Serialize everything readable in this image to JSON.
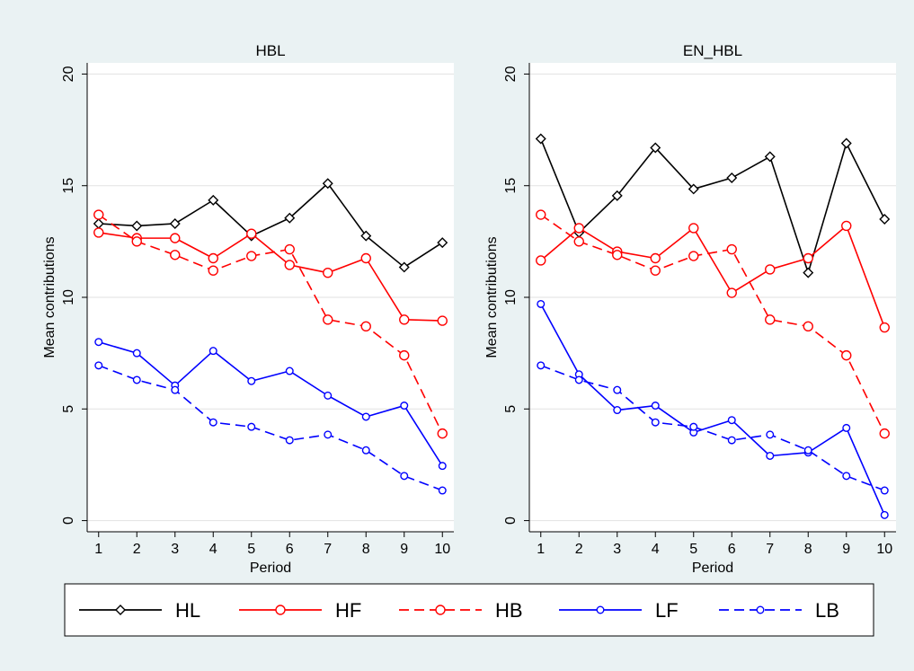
{
  "figure": {
    "background": "#eaf2f3",
    "plot_background": "#ffffff"
  },
  "chart_data": [
    {
      "type": "line",
      "title": "HBL",
      "xlabel": "Period",
      "ylabel": "Mean contributions",
      "x": [
        1,
        2,
        3,
        4,
        5,
        6,
        7,
        8,
        9,
        10
      ],
      "xticks": [
        1,
        2,
        3,
        4,
        5,
        6,
        7,
        8,
        9,
        10
      ],
      "yticks": [
        0,
        5,
        10,
        15,
        20
      ],
      "xlim": [
        0.7,
        10.3
      ],
      "ylim": [
        -0.5,
        20.5
      ],
      "grid": true,
      "series": [
        {
          "name": "HL",
          "color": "#000000",
          "dash": "solid",
          "marker": "diamond",
          "values": [
            13.3,
            13.2,
            13.3,
            14.35,
            12.75,
            13.55,
            15.1,
            12.75,
            11.35,
            12.45
          ]
        },
        {
          "name": "HF",
          "color": "#ff0000",
          "dash": "solid",
          "marker": "circle",
          "values": [
            12.9,
            12.65,
            12.65,
            11.75,
            12.85,
            11.45,
            11.1,
            11.75,
            9.0,
            8.95
          ]
        },
        {
          "name": "HB",
          "color": "#ff0000",
          "dash": "dashed",
          "marker": "circle",
          "values": [
            13.7,
            12.5,
            11.9,
            11.2,
            11.85,
            12.15,
            9.0,
            8.7,
            7.4,
            3.9
          ]
        },
        {
          "name": "LF",
          "color": "#0000ff",
          "dash": "solid",
          "marker": "circle-small",
          "values": [
            8.0,
            7.5,
            6.05,
            7.6,
            6.25,
            6.7,
            5.6,
            4.65,
            5.15,
            2.45
          ]
        },
        {
          "name": "LB",
          "color": "#0000ff",
          "dash": "dashed",
          "marker": "circle-small",
          "values": [
            6.95,
            6.3,
            5.85,
            4.4,
            4.2,
            3.6,
            3.85,
            3.15,
            2.0,
            1.35
          ]
        }
      ]
    },
    {
      "type": "line",
      "title": "EN_HBL",
      "xlabel": "Period",
      "ylabel": "Mean contributions",
      "x": [
        1,
        2,
        3,
        4,
        5,
        6,
        7,
        8,
        9,
        10
      ],
      "xticks": [
        1,
        2,
        3,
        4,
        5,
        6,
        7,
        8,
        9,
        10
      ],
      "yticks": [
        0,
        5,
        10,
        15,
        20
      ],
      "xlim": [
        0.7,
        10.3
      ],
      "ylim": [
        -0.5,
        20.5
      ],
      "grid": true,
      "series": [
        {
          "name": "HL",
          "color": "#000000",
          "dash": "solid",
          "marker": "diamond",
          "values": [
            17.1,
            12.9,
            14.55,
            16.7,
            14.85,
            15.35,
            16.3,
            11.1,
            16.9,
            13.5
          ]
        },
        {
          "name": "HF",
          "color": "#ff0000",
          "dash": "solid",
          "marker": "circle",
          "values": [
            11.65,
            13.1,
            12.05,
            11.75,
            13.1,
            10.2,
            11.25,
            11.75,
            13.2,
            8.65
          ]
        },
        {
          "name": "HB",
          "color": "#ff0000",
          "dash": "dashed",
          "marker": "circle",
          "values": [
            13.7,
            12.5,
            11.9,
            11.2,
            11.85,
            12.15,
            9.0,
            8.7,
            7.4,
            3.9
          ]
        },
        {
          "name": "LF",
          "color": "#0000ff",
          "dash": "solid",
          "marker": "circle-small",
          "values": [
            9.7,
            6.55,
            4.95,
            5.15,
            3.95,
            4.5,
            2.9,
            3.05,
            4.15,
            0.25
          ]
        },
        {
          "name": "LB",
          "color": "#0000ff",
          "dash": "dashed",
          "marker": "circle-small",
          "values": [
            6.95,
            6.3,
            5.85,
            4.4,
            4.2,
            3.6,
            3.85,
            3.15,
            2.0,
            1.35
          ]
        }
      ]
    }
  ],
  "legend": {
    "placement": "bottom",
    "items": [
      {
        "label": "HL",
        "color": "#000000",
        "dash": "solid",
        "marker": "diamond"
      },
      {
        "label": "HF",
        "color": "#ff0000",
        "dash": "solid",
        "marker": "circle"
      },
      {
        "label": "HB",
        "color": "#ff0000",
        "dash": "dashed",
        "marker": "circle"
      },
      {
        "label": "LF",
        "color": "#0000ff",
        "dash": "solid",
        "marker": "circle-small"
      },
      {
        "label": "LB",
        "color": "#0000ff",
        "dash": "dashed",
        "marker": "circle-small"
      }
    ]
  }
}
